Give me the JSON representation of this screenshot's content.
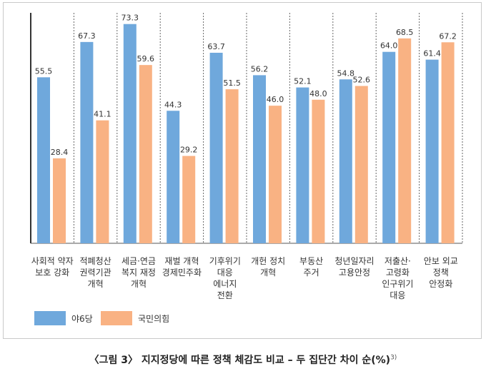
{
  "chart_data": {
    "type": "bar",
    "title": "",
    "xlabel": "",
    "ylabel": "",
    "ylim": [
      0,
      78
    ],
    "grid": false,
    "categories": [
      [
        "사회적 약자",
        "보호 강화"
      ],
      [
        "적폐청산",
        "권력기관",
        "개혁"
      ],
      [
        "세금·연금",
        "복지 재정",
        "개혁"
      ],
      [
        "재벌 개혁",
        "경제민주화"
      ],
      [
        "기후위기",
        "대응",
        "에너지",
        "전환"
      ],
      [
        "개헌 정치",
        "개혁"
      ],
      [
        "부동산",
        "주거"
      ],
      [
        "청년일자리",
        "고용안정"
      ],
      [
        "저출산·",
        "고령화",
        "인구위기",
        "대응"
      ],
      [
        "안보 외교",
        "정책",
        "안정화"
      ]
    ],
    "series": [
      {
        "name": "야6당",
        "color": "#6fa8dc",
        "values": [
          55.5,
          67.3,
          73.3,
          44.3,
          63.7,
          56.2,
          52.1,
          54.8,
          64.0,
          61.4
        ]
      },
      {
        "name": "국민의힘",
        "color": "#f9b283",
        "values": [
          28.4,
          41.1,
          59.6,
          29.2,
          51.5,
          46.0,
          48.0,
          52.6,
          68.5,
          67.2
        ]
      }
    ],
    "legend_position": "bottom-left"
  },
  "caption": {
    "text": "〈그림 3〉 지지정당에 따른 정책 체감도 비교 – 두 집단간 차이 순(%)",
    "footnote": "3)"
  }
}
